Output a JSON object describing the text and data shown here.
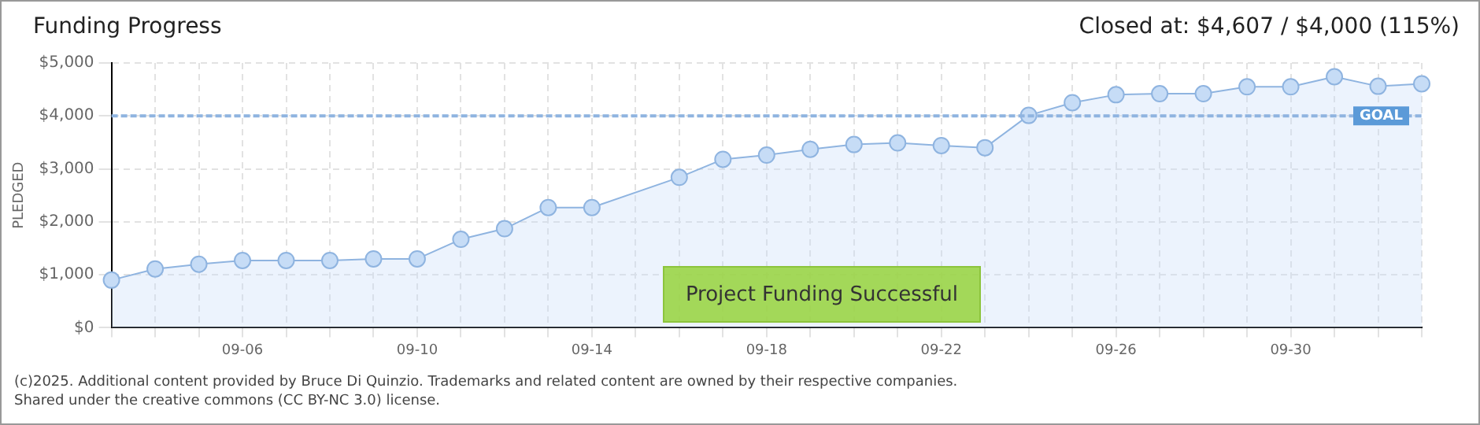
{
  "chart_data": {
    "type": "area",
    "title": "Funding Progress",
    "ylabel": "PLEDGED",
    "annotations": [
      "Closed at: $4,607 / $4,000 (115%)",
      "Project Funding Successful",
      "(c)2025. Additional content provided by Bruce Di Quinzio. Trademarks and related content are owned by their respective companies.",
      "Shared under the creative commons (CC BY-NC 3.0) license."
    ],
    "categories": [
      null,
      null,
      null,
      "09-06",
      null,
      null,
      null,
      "09-10",
      null,
      null,
      null,
      "09-14",
      null,
      null,
      null,
      "09-18",
      null,
      null,
      null,
      "09-22",
      null,
      null,
      null,
      "09-26",
      null,
      null,
      null,
      "09-30",
      null,
      null,
      null
    ],
    "series": [
      {
        "color": "#8fb4e0",
        "values": [
          900,
          1110,
          1200,
          1270,
          1270,
          1270,
          1300,
          1300,
          1670,
          1870,
          2270,
          2270,
          null,
          2840,
          3180,
          3260,
          3370,
          3460,
          3490,
          3440,
          3400,
          4010,
          4250,
          4400,
          4420,
          4420,
          4550,
          4550,
          4740,
          4560,
          4607
        ]
      }
    ],
    "ylim": [
      0,
      5000
    ],
    "yticks": [
      {
        "value": 0,
        "label": "$0"
      },
      {
        "value": 1000,
        "label": "$1,000"
      },
      {
        "value": 2000,
        "label": "$2,000"
      },
      {
        "value": 3000,
        "label": "$3,000"
      },
      {
        "value": 4000,
        "label": "$4,000"
      },
      {
        "value": 5000,
        "label": "$5,000"
      }
    ],
    "ref_lines": [
      {
        "axis": "y",
        "value": 4000,
        "label": "GOAL",
        "color": "#8fb4e0",
        "line_style": "dashed"
      }
    ],
    "grid": true,
    "legend": false,
    "marker": "circle",
    "line_style": "solid"
  }
}
